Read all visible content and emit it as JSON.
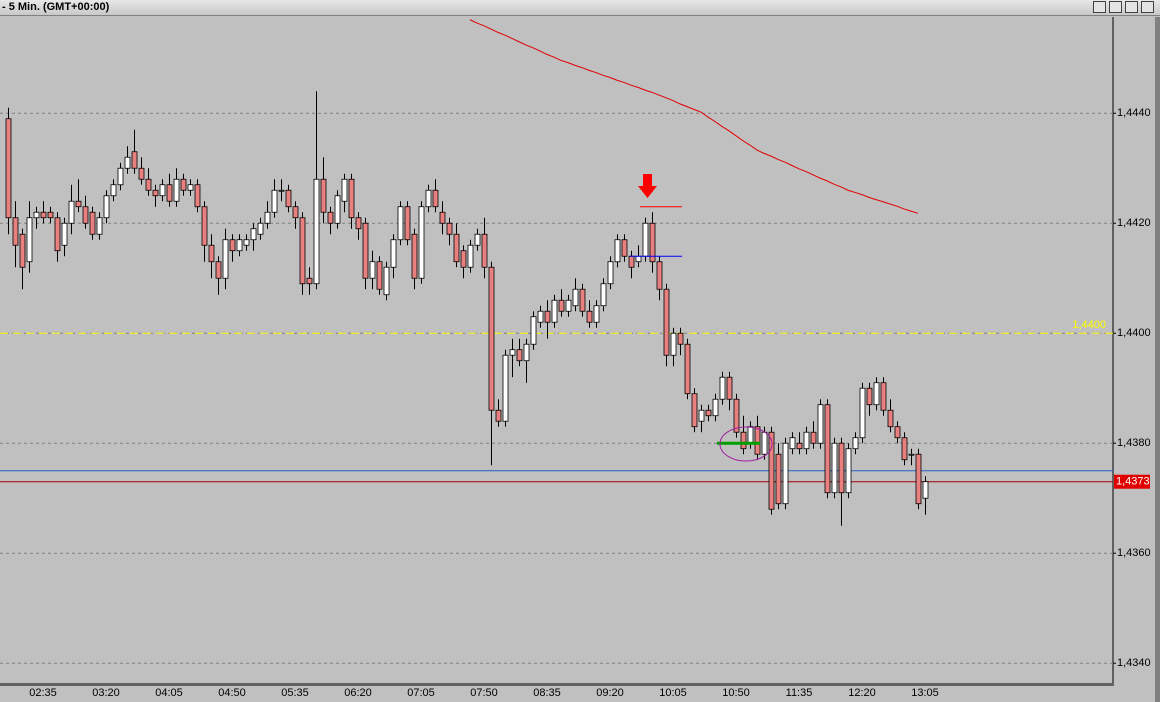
{
  "window": {
    "title": "- 5 Min. (GMT+00:00)"
  },
  "chart_data": {
    "type": "candlestick",
    "categories": [
      null,
      null,
      null,
      null,
      null,
      "02:35",
      null,
      null,
      null,
      null,
      null,
      null,
      null,
      null,
      "03:20",
      null,
      null,
      null,
      null,
      null,
      null,
      null,
      null,
      "04:05",
      null,
      null,
      null,
      null,
      null,
      null,
      null,
      null,
      "04:50",
      null,
      null,
      null,
      null,
      null,
      null,
      null,
      null,
      "05:35",
      null,
      null,
      null,
      null,
      null,
      null,
      null,
      null,
      "06:20",
      null,
      null,
      null,
      null,
      null,
      null,
      null,
      null,
      "07:05",
      null,
      null,
      null,
      null,
      null,
      null,
      null,
      null,
      "07:50",
      null,
      null,
      null,
      null,
      null,
      null,
      null,
      null,
      "08:35",
      null,
      null,
      null,
      null,
      null,
      null,
      null,
      null,
      "09:20",
      null,
      null,
      null,
      null,
      null,
      null,
      null,
      null,
      "10:05",
      null,
      null,
      null,
      null,
      null,
      null,
      null,
      null,
      "10:50",
      null,
      null,
      null,
      null,
      null,
      null,
      null,
      null,
      "11:35",
      null,
      null,
      null,
      null,
      null,
      null,
      null,
      null,
      "12:20",
      null,
      null,
      null,
      null,
      null,
      null,
      null,
      null,
      "13:05"
    ],
    "ohlc": [
      [
        1.4439,
        1.4441,
        1.4418,
        1.4421
      ],
      [
        1.4421,
        1.4424,
        1.4412,
        1.4416
      ],
      [
        1.4418,
        1.4419,
        1.4408,
        1.4412
      ],
      [
        1.4413,
        1.4424,
        1.4411,
        1.4421
      ],
      [
        1.4421,
        1.4423,
        1.4419,
        1.4422
      ],
      [
        1.4422,
        1.4424,
        1.442,
        1.4421
      ],
      [
        1.4422,
        1.4423,
        1.442,
        1.4421
      ],
      [
        1.4421,
        1.4422,
        1.4413,
        1.4415
      ],
      [
        1.4416,
        1.4421,
        1.4414,
        1.442
      ],
      [
        1.442,
        1.4427,
        1.4418,
        1.4424
      ],
      [
        1.4424,
        1.4428,
        1.4422,
        1.4423
      ],
      [
        1.4423,
        1.4425,
        1.4419,
        1.442
      ],
      [
        1.4422,
        1.4423,
        1.4417,
        1.4418
      ],
      [
        1.4418,
        1.4422,
        1.4417,
        1.4421
      ],
      [
        1.4421,
        1.4426,
        1.442,
        1.4425
      ],
      [
        1.4425,
        1.4428,
        1.4424,
        1.4427
      ],
      [
        1.4427,
        1.4431,
        1.4426,
        1.443
      ],
      [
        1.443,
        1.4434,
        1.4429,
        1.4432
      ],
      [
        1.4433,
        1.4437,
        1.4429,
        1.443
      ],
      [
        1.443,
        1.4432,
        1.4427,
        1.4428
      ],
      [
        1.4428,
        1.443,
        1.4425,
        1.4426
      ],
      [
        1.4426,
        1.4427,
        1.4423,
        1.4425
      ],
      [
        1.4425,
        1.4428,
        1.4424,
        1.4427
      ],
      [
        1.4427,
        1.4429,
        1.4423,
        1.4424
      ],
      [
        1.4424,
        1.443,
        1.4423,
        1.4428
      ],
      [
        1.4428,
        1.4429,
        1.4425,
        1.4426
      ],
      [
        1.4426,
        1.4428,
        1.4425,
        1.4427
      ],
      [
        1.4427,
        1.4428,
        1.4422,
        1.4423
      ],
      [
        1.4423,
        1.4424,
        1.4413,
        1.4416
      ],
      [
        1.4416,
        1.4418,
        1.441,
        1.4413
      ],
      [
        1.4413,
        1.4414,
        1.4407,
        1.441
      ],
      [
        1.441,
        1.4419,
        1.4408,
        1.4417
      ],
      [
        1.4417,
        1.4418,
        1.4413,
        1.4415
      ],
      [
        1.4415,
        1.4418,
        1.4414,
        1.4417
      ],
      [
        1.4416,
        1.4418,
        1.4415,
        1.4417
      ],
      [
        1.4417,
        1.442,
        1.4415,
        1.4419
      ],
      [
        1.4418,
        1.4421,
        1.4417,
        1.442
      ],
      [
        1.442,
        1.4424,
        1.4419,
        1.4422
      ],
      [
        1.4422,
        1.4428,
        1.4421,
        1.4426
      ],
      [
        1.4426,
        1.4428,
        1.4424,
        1.4426
      ],
      [
        1.4426,
        1.4427,
        1.4422,
        1.4423
      ],
      [
        1.4423,
        1.4424,
        1.4419,
        1.4421
      ],
      [
        1.4421,
        1.4422,
        1.4407,
        1.4409
      ],
      [
        1.441,
        1.4412,
        1.4407,
        1.4409
      ],
      [
        1.4409,
        1.4444,
        1.4408,
        1.4428
      ],
      [
        1.4428,
        1.4432,
        1.442,
        1.4422
      ],
      [
        1.4422,
        1.4423,
        1.4418,
        1.442
      ],
      [
        1.442,
        1.4426,
        1.4419,
        1.4425
      ],
      [
        1.4424,
        1.4429,
        1.4422,
        1.4428
      ],
      [
        1.4428,
        1.4429,
        1.4419,
        1.4421
      ],
      [
        1.4421,
        1.4422,
        1.4417,
        1.4419
      ],
      [
        1.442,
        1.4421,
        1.4408,
        1.441
      ],
      [
        1.441,
        1.4415,
        1.4408,
        1.4413
      ],
      [
        1.4413,
        1.4414,
        1.4407,
        1.4408
      ],
      [
        1.4407,
        1.4413,
        1.4406,
        1.4412
      ],
      [
        1.4412,
        1.4418,
        1.441,
        1.4417
      ],
      [
        1.4417,
        1.4424,
        1.4416,
        1.4423
      ],
      [
        1.4423,
        1.4424,
        1.4416,
        1.4417
      ],
      [
        1.4418,
        1.4419,
        1.4408,
        1.441
      ],
      [
        1.441,
        1.4424,
        1.4409,
        1.4423
      ],
      [
        1.4423,
        1.4427,
        1.4422,
        1.4426
      ],
      [
        1.4426,
        1.4428,
        1.4422,
        1.4423
      ],
      [
        1.4422,
        1.4424,
        1.4418,
        1.442
      ],
      [
        1.442,
        1.4421,
        1.4416,
        1.4418
      ],
      [
        1.4418,
        1.442,
        1.4412,
        1.4413
      ],
      [
        1.4415,
        1.4416,
        1.441,
        1.4412
      ],
      [
        1.4412,
        1.4417,
        1.4411,
        1.4416
      ],
      [
        1.4416,
        1.4419,
        1.4415,
        1.4418
      ],
      [
        1.4418,
        1.4421,
        1.441,
        1.4412
      ],
      [
        1.4412,
        1.4413,
        1.4376,
        1.4386
      ],
      [
        1.4386,
        1.4388,
        1.4383,
        1.4384
      ],
      [
        1.4384,
        1.4397,
        1.4383,
        1.4396
      ],
      [
        1.4396,
        1.4399,
        1.4392,
        1.4397
      ],
      [
        1.4397,
        1.4399,
        1.4394,
        1.4395
      ],
      [
        1.4395,
        1.4399,
        1.4391,
        1.4398
      ],
      [
        1.4398,
        1.4404,
        1.4397,
        1.4403
      ],
      [
        1.4402,
        1.4405,
        1.4401,
        1.4404
      ],
      [
        1.4404,
        1.4406,
        1.4399,
        1.4402
      ],
      [
        1.4402,
        1.4407,
        1.4401,
        1.4406
      ],
      [
        1.4406,
        1.4408,
        1.4403,
        1.4404
      ],
      [
        1.4404,
        1.4407,
        1.4403,
        1.4406
      ],
      [
        1.4405,
        1.441,
        1.4404,
        1.4408
      ],
      [
        1.4408,
        1.4409,
        1.4403,
        1.4404
      ],
      [
        1.4404,
        1.4406,
        1.4401,
        1.4402
      ],
      [
        1.4402,
        1.4406,
        1.4401,
        1.4405
      ],
      [
        1.4405,
        1.441,
        1.4404,
        1.4409
      ],
      [
        1.4409,
        1.4414,
        1.4408,
        1.4413
      ],
      [
        1.4413,
        1.4418,
        1.4412,
        1.4417
      ],
      [
        1.4417,
        1.4418,
        1.4413,
        1.4414
      ],
      [
        1.4414,
        1.4415,
        1.441,
        1.4412
      ],
      [
        1.4413,
        1.4416,
        1.4412,
        1.4414
      ],
      [
        1.4414,
        1.4421,
        1.4413,
        1.442
      ],
      [
        1.442,
        1.4422,
        1.4411,
        1.4413
      ],
      [
        1.4413,
        1.4414,
        1.4406,
        1.4408
      ],
      [
        1.4408,
        1.4409,
        1.4394,
        1.4396
      ],
      [
        1.4396,
        1.4401,
        1.4394,
        1.44
      ],
      [
        1.44,
        1.4401,
        1.4396,
        1.4398
      ],
      [
        1.4398,
        1.4399,
        1.4388,
        1.4389
      ],
      [
        1.4389,
        1.439,
        1.4382,
        1.4383
      ],
      [
        1.4384,
        1.4387,
        1.4382,
        1.4386
      ],
      [
        1.4386,
        1.4387,
        1.4384,
        1.4385
      ],
      [
        1.4385,
        1.4389,
        1.4384,
        1.4388
      ],
      [
        1.4388,
        1.4393,
        1.4387,
        1.4392
      ],
      [
        1.4392,
        1.4393,
        1.4386,
        1.4388
      ],
      [
        1.4388,
        1.4389,
        1.4381,
        1.4382
      ],
      [
        1.4382,
        1.4385,
        1.4378,
        1.4379
      ],
      [
        1.438,
        1.4384,
        1.4379,
        1.4383
      ],
      [
        1.4383,
        1.4385,
        1.4377,
        1.4378
      ],
      [
        1.4378,
        1.4383,
        1.4377,
        1.4382
      ],
      [
        1.4382,
        1.4383,
        1.4367,
        1.4368
      ],
      [
        1.4378,
        1.438,
        1.4368,
        1.4369
      ],
      [
        1.4369,
        1.4381,
        1.4368,
        1.438
      ],
      [
        1.4379,
        1.4382,
        1.4378,
        1.4381
      ],
      [
        1.438,
        1.4382,
        1.4378,
        1.4379
      ],
      [
        1.4379,
        1.4383,
        1.4378,
        1.4382
      ],
      [
        1.4382,
        1.4384,
        1.4379,
        1.438
      ],
      [
        1.438,
        1.4388,
        1.4379,
        1.4387
      ],
      [
        1.4387,
        1.4388,
        1.437,
        1.4371
      ],
      [
        1.4371,
        1.4381,
        1.437,
        1.438
      ],
      [
        1.438,
        1.4381,
        1.4365,
        1.4371
      ],
      [
        1.4371,
        1.438,
        1.437,
        1.4379
      ],
      [
        1.4379,
        1.4382,
        1.4378,
        1.4381
      ],
      [
        1.4381,
        1.4391,
        1.438,
        1.439
      ],
      [
        1.439,
        1.4391,
        1.4385,
        1.4387
      ],
      [
        1.4387,
        1.4392,
        1.4386,
        1.4391
      ],
      [
        1.4391,
        1.4392,
        1.4385,
        1.4386
      ],
      [
        1.4386,
        1.4388,
        1.4382,
        1.4383
      ],
      [
        1.4383,
        1.4384,
        1.438,
        1.4381
      ],
      [
        1.4381,
        1.4382,
        1.4376,
        1.4377
      ],
      [
        1.4378,
        1.4379,
        1.4376,
        1.4378
      ],
      [
        1.4378,
        1.4379,
        1.4368,
        1.4369
      ],
      [
        1.437,
        1.4374,
        1.4367,
        1.4373
      ]
    ],
    "up_color": "#ffffff",
    "down_color": "#e88080",
    "outline_color": "#000000",
    "ma": {
      "color": "#e00000",
      "values": [
        null,
        null,
        null,
        null,
        null,
        null,
        null,
        null,
        null,
        null,
        null,
        null,
        null,
        null,
        null,
        null,
        null,
        null,
        null,
        null,
        null,
        null,
        null,
        null,
        null,
        null,
        null,
        null,
        null,
        null,
        null,
        null,
        null,
        null,
        null,
        null,
        null,
        null,
        null,
        null,
        null,
        null,
        null,
        null,
        null,
        null,
        null,
        null,
        null,
        null,
        null,
        null,
        null,
        null,
        null,
        null,
        null,
        null,
        null,
        null,
        null,
        null,
        null,
        null,
        null,
        null,
        1.4457,
        1.44564,
        1.44559,
        1.44553,
        1.44547,
        1.44542,
        1.44536,
        1.4453,
        1.44524,
        1.44519,
        1.44513,
        1.44507,
        1.44502,
        1.44496,
        1.44492,
        1.44487,
        1.44483,
        1.44478,
        1.44474,
        1.44469,
        1.44465,
        1.4446,
        1.44456,
        1.44451,
        1.44447,
        1.44442,
        1.44438,
        1.44433,
        1.44428,
        1.44423,
        1.44417,
        1.44412,
        1.44407,
        1.44402,
        1.44393,
        1.44385,
        1.44376,
        1.44368,
        1.44359,
        1.4435,
        1.44342,
        1.44333,
        1.44327,
        1.44322,
        1.44316,
        1.44311,
        1.44305,
        1.44299,
        1.44294,
        1.44288,
        1.44282,
        1.44277,
        1.44271,
        1.44266,
        1.4426,
        1.44256,
        1.44252,
        1.44247,
        1.44243,
        1.44239,
        1.44235,
        1.44231,
        1.44226,
        1.44222,
        1.44218,
        null
      ]
    },
    "levels": [
      {
        "value": 1.44,
        "color": "#ffff00",
        "dash": true,
        "label": "1,4400",
        "label_position": "plot"
      },
      {
        "value": 1.4375,
        "color": "#2060c0"
      },
      {
        "value": 1.4373,
        "color": "#a00000",
        "label": "1,4373",
        "label_position": "axis"
      }
    ],
    "segments": [
      {
        "value": 1.4423,
        "color": "#ff0000"
      },
      {
        "value": 1.4414,
        "color": "#0000ff"
      },
      {
        "value": 1.438,
        "color": "#00a000"
      }
    ],
    "ylim": [
      1.43364,
      1.44575
    ],
    "yticks": [
      {
        "value": 1.434,
        "label": "1,4340"
      },
      {
        "value": 1.436,
        "label": "1,4360"
      },
      {
        "value": 1.438,
        "label": "1,4380"
      },
      {
        "value": 1.44,
        "label": "1,4400"
      },
      {
        "value": 1.442,
        "label": "1,4420"
      },
      {
        "value": 1.444,
        "label": "1,4440"
      }
    ],
    "grid": true
  }
}
